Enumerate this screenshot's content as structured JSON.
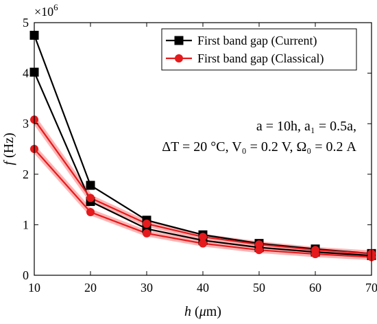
{
  "chart_data": {
    "type": "line",
    "x": [
      10,
      20,
      30,
      40,
      50,
      60,
      70
    ],
    "xlabel": "h (μm)",
    "ylabel": "f (Hz)",
    "xlim": [
      10,
      70
    ],
    "ylim": [
      0,
      5
    ],
    "y_multiplier": "×10^6",
    "x_ticks": [
      10,
      20,
      30,
      40,
      50,
      60,
      70
    ],
    "y_ticks": [
      0,
      1,
      2,
      3,
      4,
      5
    ],
    "grid": false,
    "legend_position": "top-right",
    "series": [
      {
        "name": "First band gap (Current)",
        "kind": "upper",
        "color": "#000000",
        "values": [
          4.75,
          1.78,
          1.09,
          0.8,
          0.63,
          0.52,
          0.43
        ]
      },
      {
        "name": "First band gap (Current)",
        "kind": "lower",
        "color": "#000000",
        "values": [
          4.02,
          1.46,
          0.92,
          0.69,
          0.55,
          0.46,
          0.39
        ]
      },
      {
        "name": "First band gap (Classical)",
        "kind": "upper",
        "color": "#e41a1c",
        "values": [
          3.08,
          1.53,
          1.02,
          0.76,
          0.61,
          0.5,
          0.43
        ]
      },
      {
        "name": "First band gap (Classical)",
        "kind": "lower",
        "color": "#e41a1c",
        "values": [
          2.5,
          1.25,
          0.83,
          0.63,
          0.5,
          0.42,
          0.36
        ]
      }
    ],
    "legend": [
      {
        "label": "First band gap (Current)",
        "color": "#000000",
        "marker": "square"
      },
      {
        "label": "First band gap (Classical)",
        "color": "#e41a1c",
        "marker": "circle"
      }
    ],
    "annotations": [
      "a = 10h, a₁ = 0.5a,",
      "ΔT = 20 °C, V₀ = 0.2 V, Ω₀ = 0.2 A"
    ],
    "band_fill_color": "#ff2a2a"
  }
}
